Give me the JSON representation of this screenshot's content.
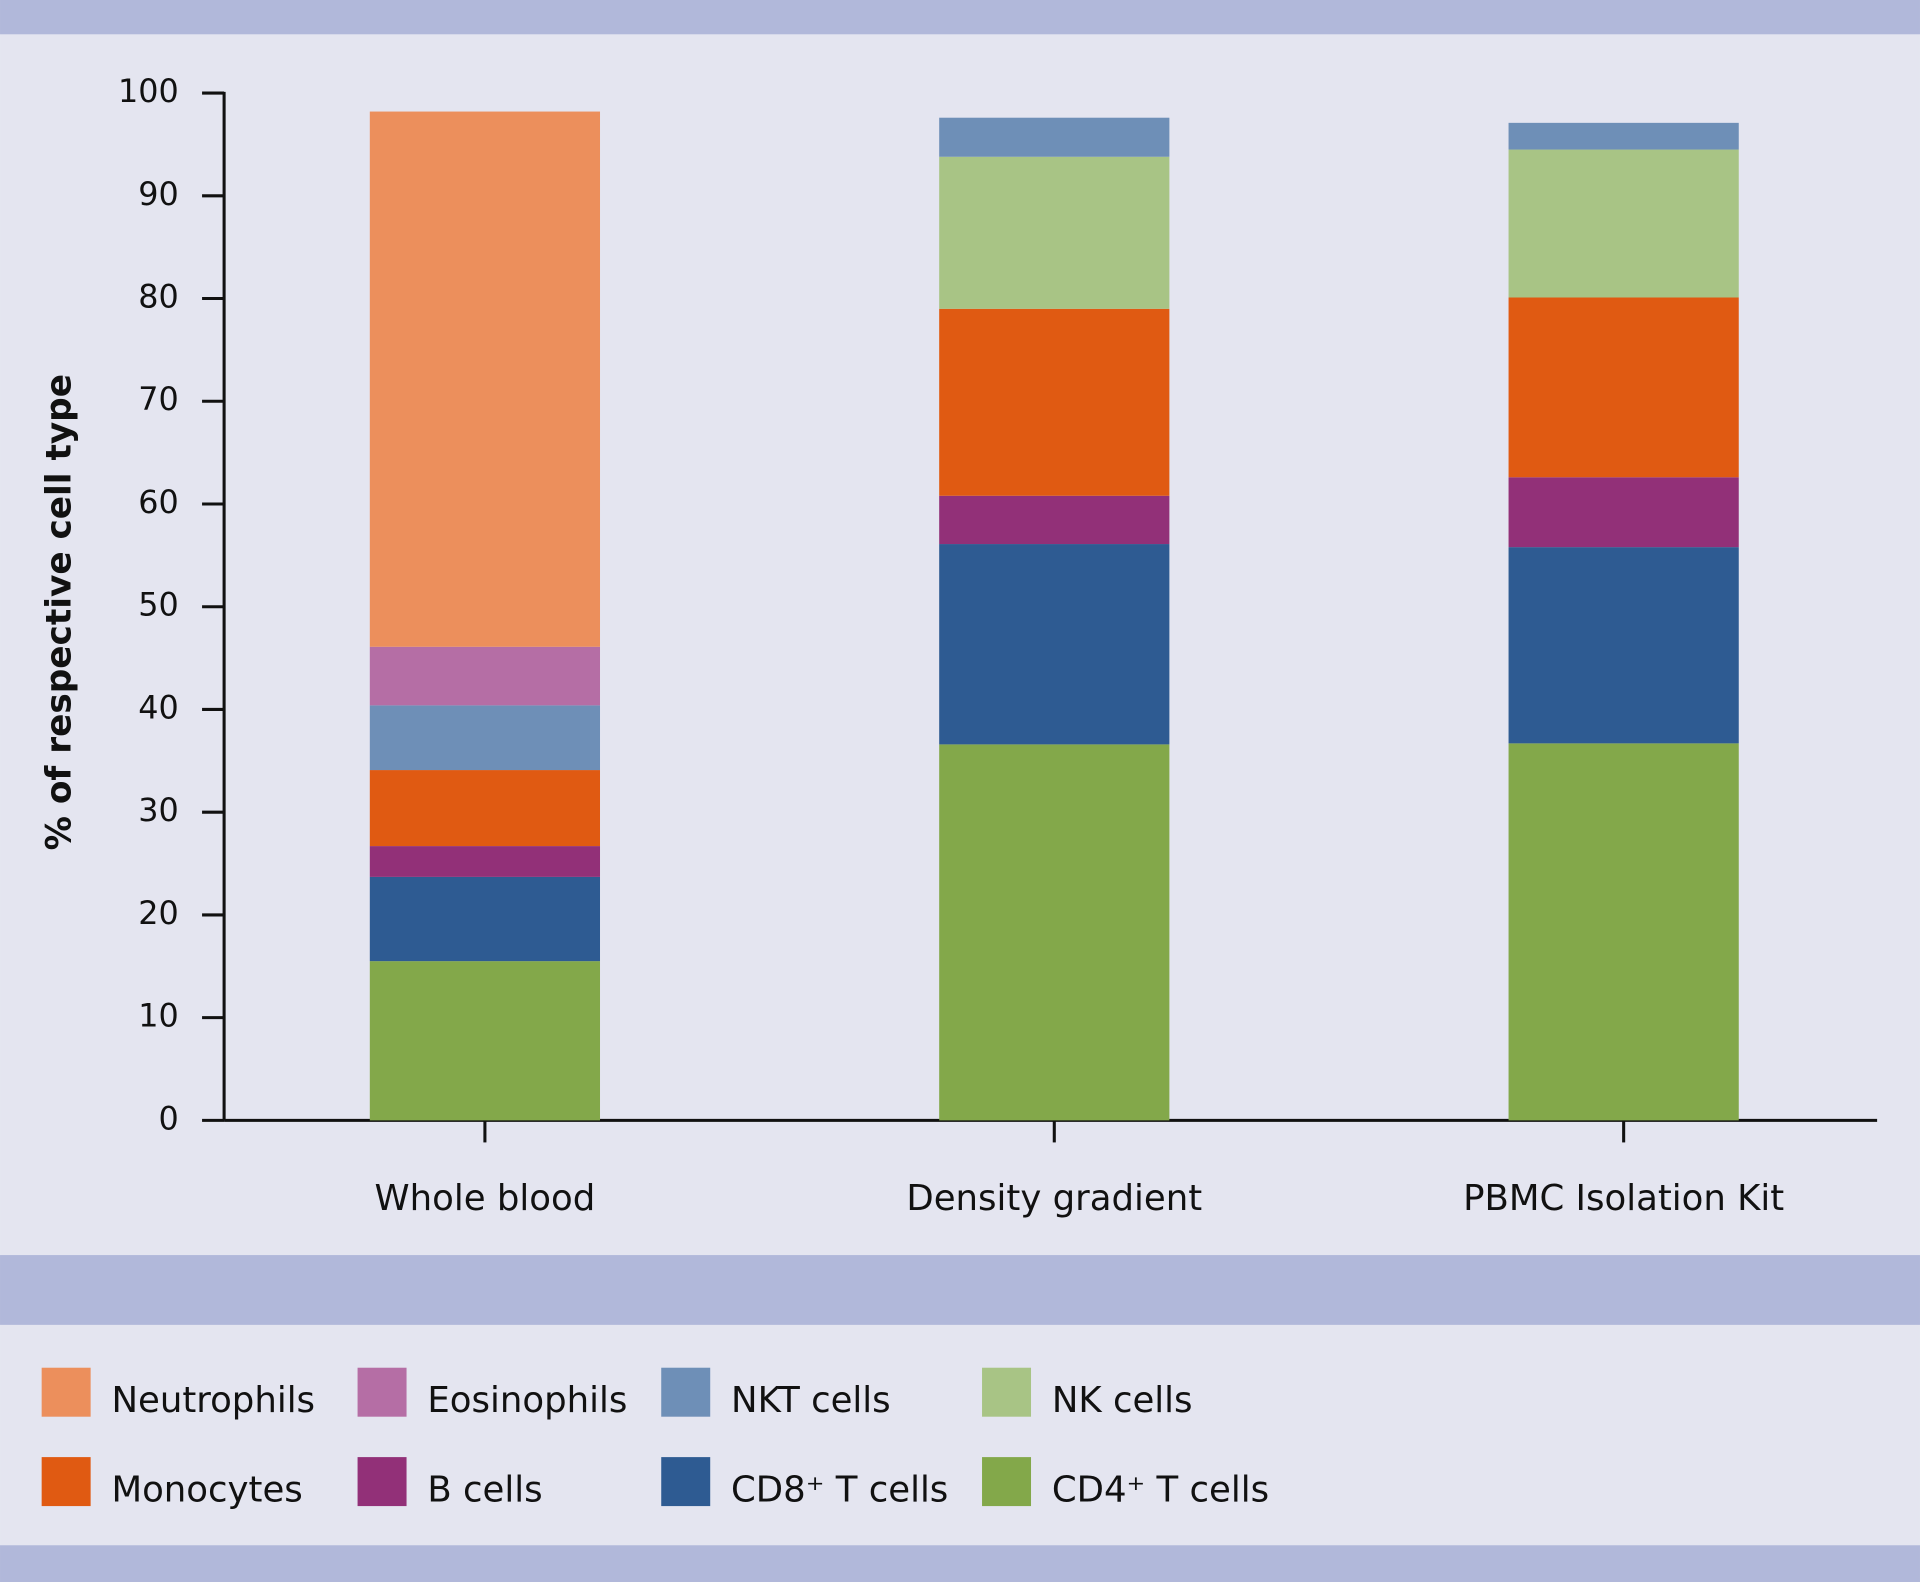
{
  "chart_data": {
    "type": "stacked_bar",
    "y_label": "% of respective cell type",
    "categories": [
      "Whole blood",
      "Density gradient",
      "PBMC Isolation Kit"
    ],
    "ylim": [
      0,
      100
    ],
    "yticks": [
      0,
      10,
      20,
      30,
      40,
      50,
      60,
      70,
      80,
      90,
      100
    ],
    "series": [
      {
        "name": "Neutrophils",
        "color": "#ec8f5c",
        "values": [
          52.1,
          0,
          0
        ]
      },
      {
        "name": "Eosinophils",
        "color": "#b56ea5",
        "values": [
          5.7,
          0,
          0
        ]
      },
      {
        "name": "NKT cells",
        "color": "#6e8fb7",
        "values": [
          6.3,
          3.8,
          2.6
        ]
      },
      {
        "name": "NK cells",
        "color": "#a8c485",
        "values": [
          0,
          14.8,
          14.4
        ]
      },
      {
        "name": "Monocytes",
        "color": "#e05a12",
        "values": [
          7.4,
          18.2,
          17.5
        ]
      },
      {
        "name": "B cells",
        "color": "#923078",
        "values": [
          3.0,
          4.7,
          6.8
        ]
      },
      {
        "name": "CD8⁺ T cells",
        "color": "#2e5b92",
        "values": [
          8.2,
          19.5,
          19.1
        ]
      },
      {
        "name": "CD4⁺ T cells",
        "color": "#83a84a",
        "values": [
          15.5,
          36.6,
          36.7
        ]
      }
    ]
  }
}
